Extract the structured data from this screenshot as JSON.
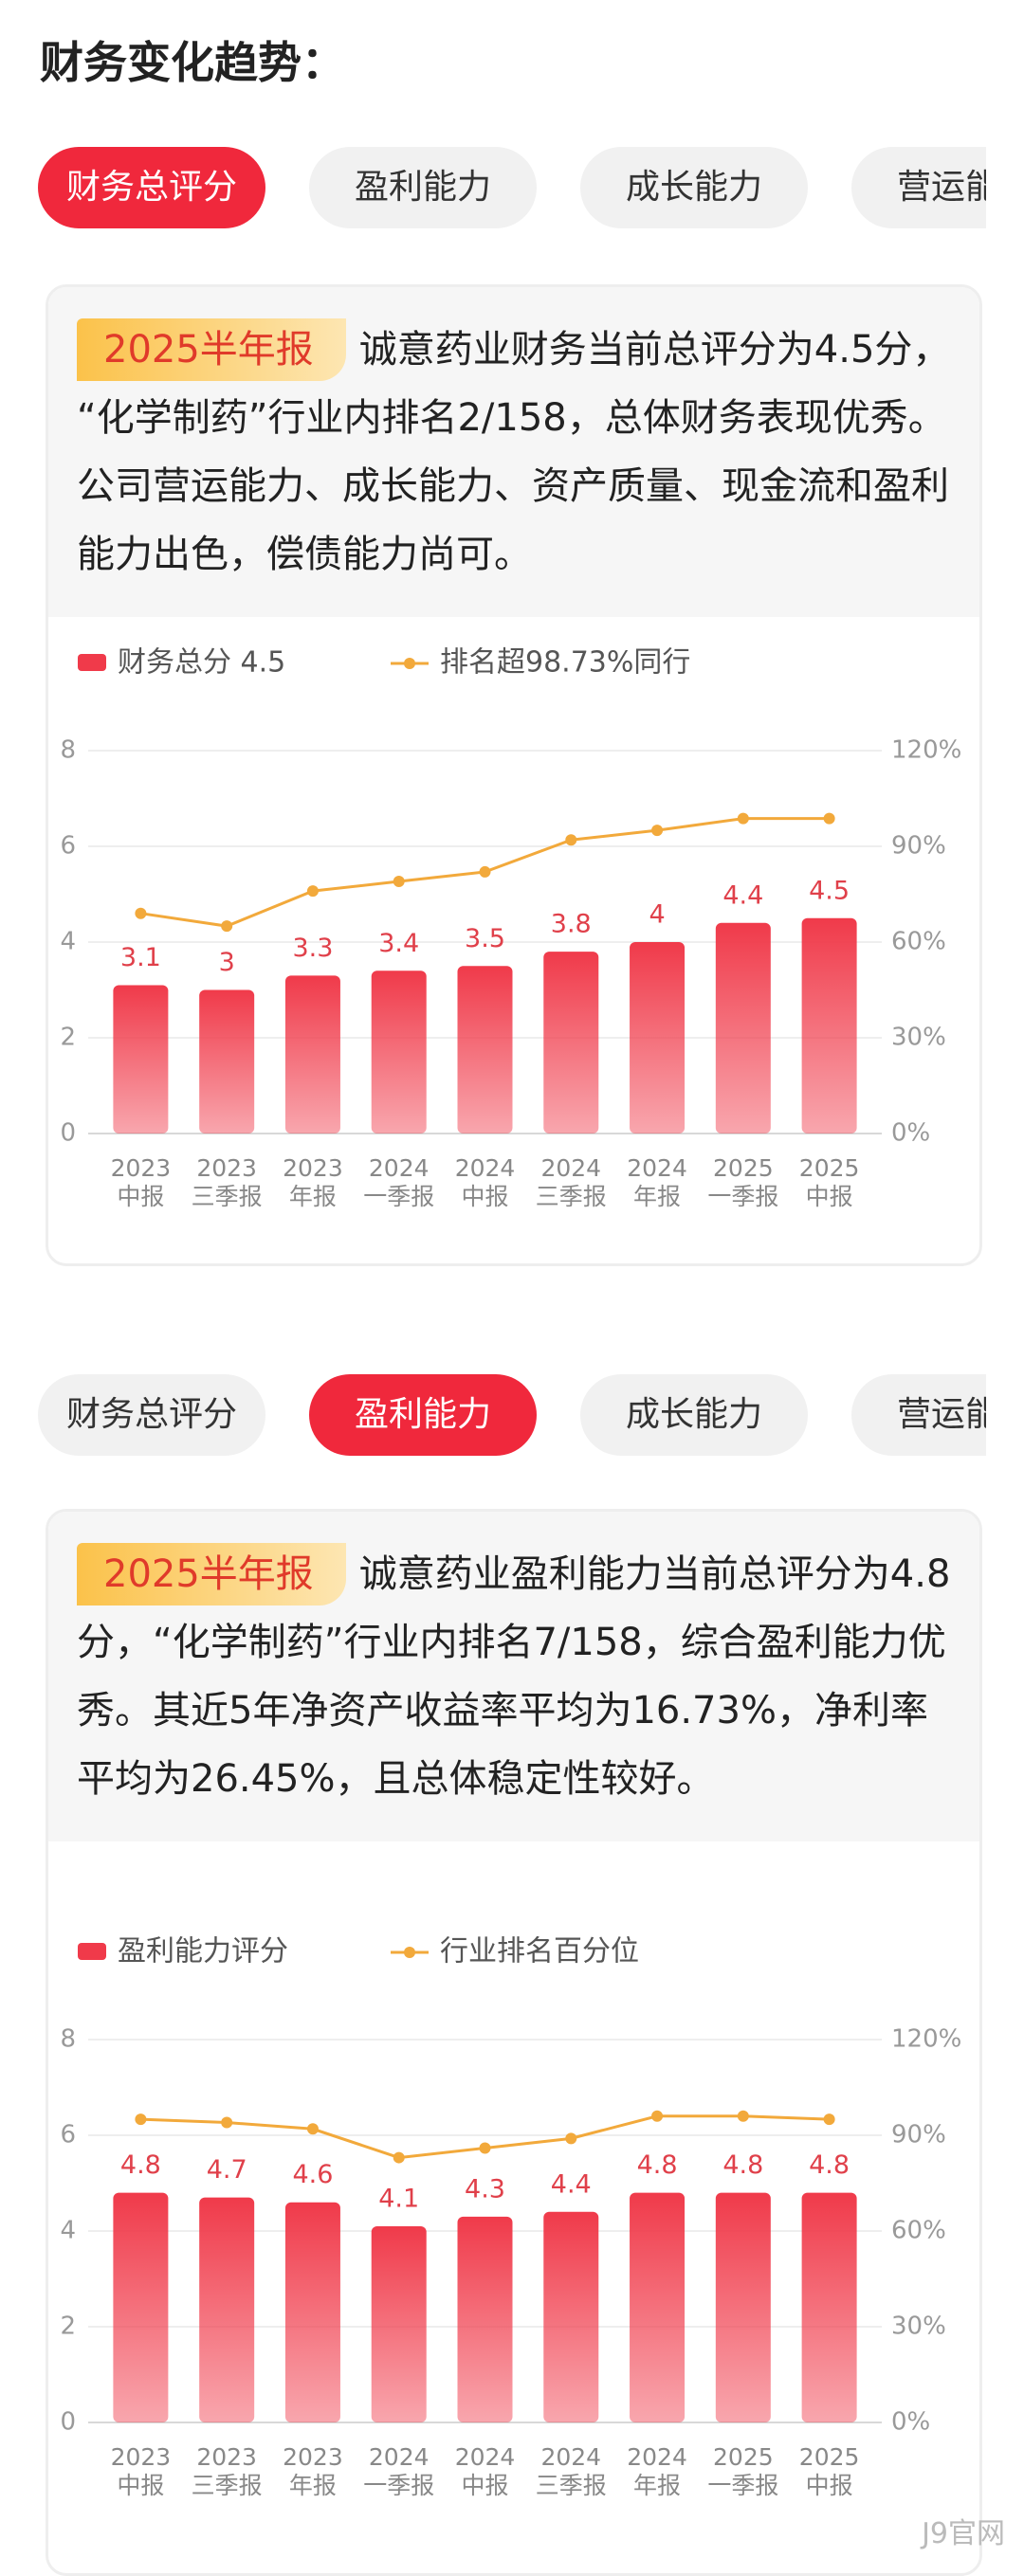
{
  "header": {
    "title": "财务变化趋势："
  },
  "sections": [
    {
      "tabs": [
        "财务总评分",
        "盈利能力",
        "成长能力",
        "营运能力"
      ],
      "active_tab": 0,
      "badge": "2025半年报",
      "summary": "诚意药业财务当前总评分为4.5分，“化学制药”行业内排名2/158，总体财务表现优秀。公司营运能力、成长能力、资产质量、现金流和盈利能力出色，偿债能力尚可。"
    },
    {
      "tabs": [
        "财务总评分",
        "盈利能力",
        "成长能力",
        "营运能力"
      ],
      "active_tab": 1,
      "badge": "2025半年报",
      "summary": "诚意药业盈利能力当前总评分为4.8分，“化学制药”行业内排名7/158，综合盈利能力优秀。其近5年净资产收益率平均为16.73%，净利率平均为26.45%，且总体稳定性较好。"
    }
  ],
  "chart_data": [
    {
      "type": "bar_line",
      "categories": [
        [
          "2023",
          "中报"
        ],
        [
          "2023",
          "三季报"
        ],
        [
          "2023",
          "年报"
        ],
        [
          "2024",
          "一季报"
        ],
        [
          "2024",
          "中报"
        ],
        [
          "2024",
          "三季报"
        ],
        [
          "2024",
          "年报"
        ],
        [
          "2025",
          "一季报"
        ],
        [
          "2025",
          "中报"
        ]
      ],
      "series": [
        {
          "name": "财务总分 4.5",
          "color": "#f03a4a",
          "values": [
            3.1,
            3,
            3.3,
            3.4,
            3.5,
            3.8,
            4,
            4.4,
            4.5
          ]
        },
        {
          "name": "排名超98.73%同行",
          "color": "#f2a93b",
          "axis": "y2",
          "values": [
            69,
            65,
            76,
            79,
            82,
            92,
            95,
            98.73,
            98.73
          ]
        }
      ],
      "ylim": [
        0,
        8
      ],
      "yticks": [
        0,
        2,
        4,
        6,
        8
      ],
      "y2lim": [
        0,
        120
      ],
      "y2ticks": [
        {
          "value": 0,
          "label": "0%"
        },
        {
          "value": 30,
          "label": "30%"
        },
        {
          "value": 60,
          "label": "60%"
        },
        {
          "value": 90,
          "label": "90%"
        },
        {
          "value": 120,
          "label": "120%"
        }
      ],
      "grid": true,
      "show_value_labels": true
    },
    {
      "type": "bar_line",
      "categories": [
        [
          "2023",
          "中报"
        ],
        [
          "2023",
          "三季报"
        ],
        [
          "2023",
          "年报"
        ],
        [
          "2024",
          "一季报"
        ],
        [
          "2024",
          "中报"
        ],
        [
          "2024",
          "三季报"
        ],
        [
          "2024",
          "年报"
        ],
        [
          "2025",
          "一季报"
        ],
        [
          "2025",
          "中报"
        ]
      ],
      "series": [
        {
          "name": "盈利能力评分",
          "color": "#f03a4a",
          "values": [
            4.8,
            4.7,
            4.6,
            4.1,
            4.3,
            4.4,
            4.8,
            4.8,
            4.8
          ]
        },
        {
          "name": "行业排名百分位",
          "color": "#f2a93b",
          "axis": "y2",
          "values": [
            95,
            94,
            92,
            83,
            86,
            89,
            96,
            96,
            95
          ]
        }
      ],
      "ylim": [
        0,
        8
      ],
      "yticks": [
        0,
        2,
        4,
        6,
        8
      ],
      "y2lim": [
        0,
        120
      ],
      "y2ticks": [
        {
          "value": 0,
          "label": "0%"
        },
        {
          "value": 30,
          "label": "30%"
        },
        {
          "value": 60,
          "label": "60%"
        },
        {
          "value": 90,
          "label": "90%"
        },
        {
          "value": 120,
          "label": "120%"
        }
      ],
      "grid": true,
      "show_value_labels": true
    }
  ],
  "watermark": "J9官网"
}
